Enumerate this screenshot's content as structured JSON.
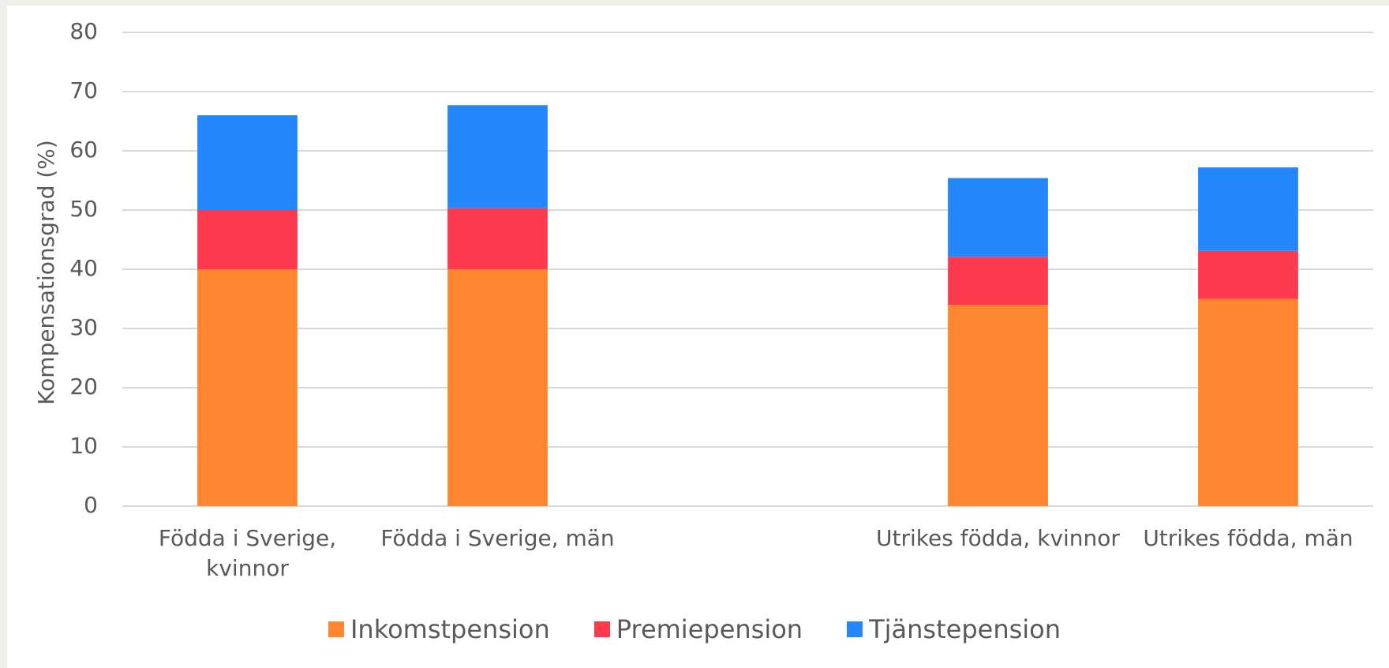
{
  "chart_data": {
    "type": "stacked_bar",
    "y_label": "Kompensationsgrad (%)",
    "categories": [
      "Födda i Sverige, kvinnor",
      "Födda i Sverige, män",
      null,
      "Utrikes födda, kvinnor",
      "Utrikes födda, män"
    ],
    "series": [
      {
        "name": "Inkomstpension",
        "color": "#fe8630",
        "values": [
          40,
          40,
          null,
          34,
          35
        ]
      },
      {
        "name": "Premiepension",
        "color": "#fe3a50",
        "values": [
          10,
          10.3,
          null,
          8.1,
          8.1
        ]
      },
      {
        "name": "Tjänstepension",
        "color": "#2487fb",
        "values": [
          16,
          17.4,
          null,
          13.3,
          14.1
        ]
      }
    ],
    "ylim": [
      0,
      80
    ],
    "yticks": [
      0,
      10,
      20,
      30,
      40,
      50,
      60,
      70,
      80
    ],
    "grid": true,
    "legend": "bottom"
  }
}
